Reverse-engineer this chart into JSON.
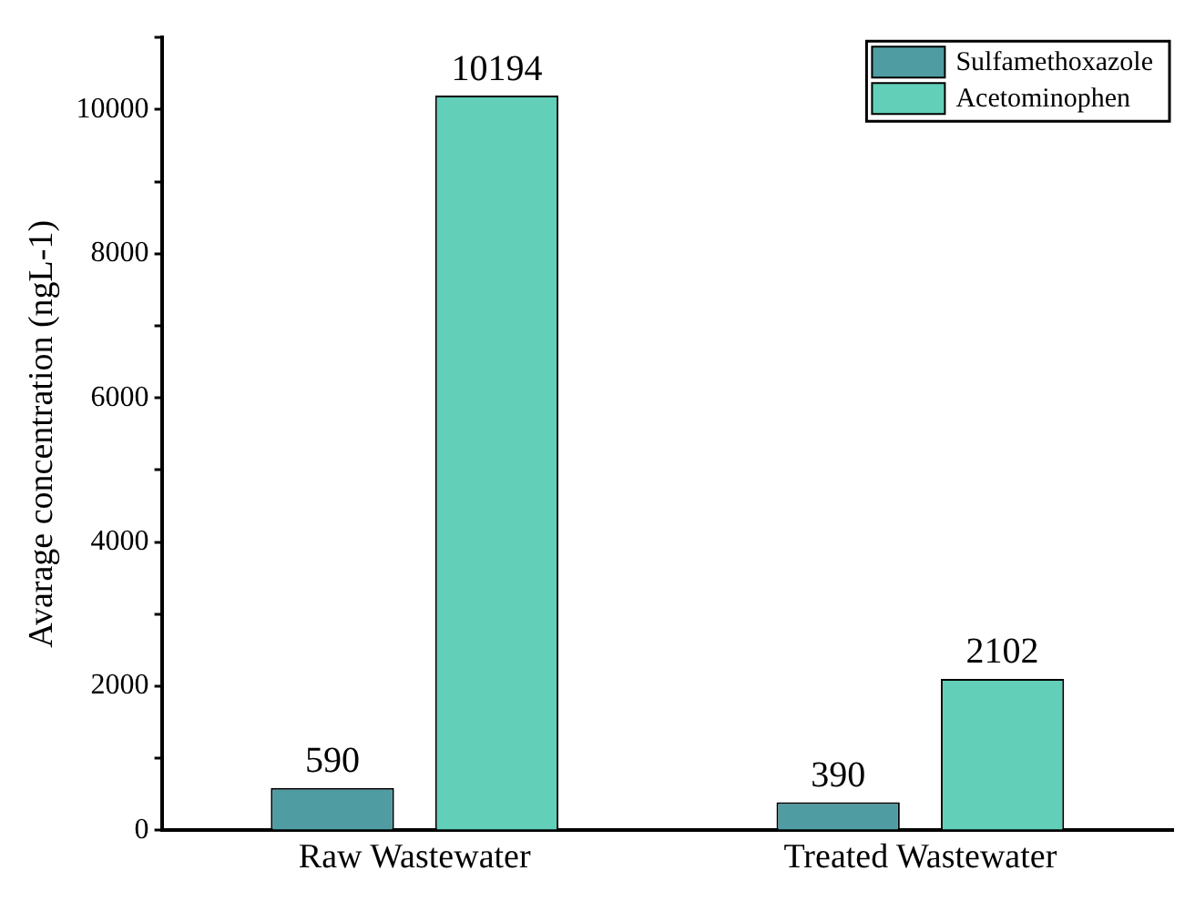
{
  "chart_data": {
    "type": "bar",
    "ylabel": "Avarage concentration (ngL-1)",
    "categories": [
      "Raw Wastewater",
      "Treated Wastewater"
    ],
    "series": [
      {
        "name": "Sulfamethoxazole",
        "color": "#4f9da3",
        "values": [
          590,
          390
        ]
      },
      {
        "name": "Acetominophen",
        "color": "#62cfb8",
        "values": [
          10194,
          2102
        ]
      }
    ],
    "ylim": [
      0,
      11000
    ],
    "yticks": [
      0,
      {
        "value": 1000,
        "label": null
      },
      2000,
      {
        "value": 3000,
        "label": null
      },
      4000,
      {
        "value": 5000,
        "label": null
      },
      6000,
      {
        "value": 7000,
        "label": null
      },
      8000,
      {
        "value": 9000,
        "label": null
      },
      10000,
      {
        "value": 11000,
        "label": null
      }
    ],
    "data_labels": true,
    "legend": "top right",
    "grid": false
  }
}
